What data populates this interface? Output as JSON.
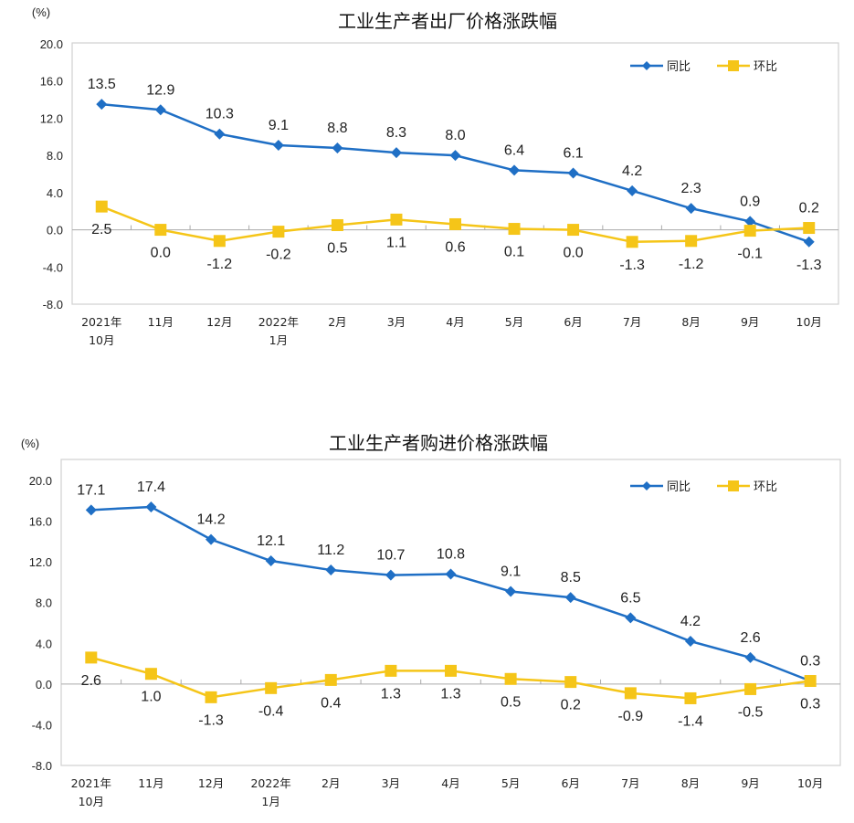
{
  "chart_data": [
    {
      "type": "line",
      "title": "工业生产者出厂价格涨跌幅",
      "ylabel": "(%)",
      "ylim": [
        -8,
        20
      ],
      "yticks": [
        "20.0",
        "16.0",
        "12.0",
        "8.0",
        "4.0",
        "0.0",
        "-4.0",
        "-8.0"
      ],
      "grid": false,
      "legend": "top-right",
      "categories": [
        [
          "2021年",
          "10月"
        ],
        [
          "11月"
        ],
        [
          "12月"
        ],
        [
          "2022年",
          "1月"
        ],
        [
          "2月"
        ],
        [
          "3月"
        ],
        [
          "4月"
        ],
        [
          "5月"
        ],
        [
          "6月"
        ],
        [
          "7月"
        ],
        [
          "8月"
        ],
        [
          "9月"
        ],
        [
          "10月"
        ]
      ],
      "series": [
        {
          "name": "同比",
          "color": "#1f6fc5",
          "marker": "diamond",
          "values": [
            13.5,
            12.9,
            10.3,
            9.1,
            8.8,
            8.3,
            8.0,
            6.4,
            6.1,
            4.2,
            2.3,
            0.9,
            -1.3
          ]
        },
        {
          "name": "环比",
          "color": "#f5c518",
          "marker": "square",
          "values": [
            2.5,
            0.0,
            -1.2,
            -0.2,
            0.5,
            1.1,
            0.6,
            0.1,
            0.0,
            -1.3,
            -1.2,
            -0.1,
            0.2
          ]
        }
      ]
    },
    {
      "type": "line",
      "title": "工业生产者购进价格涨跌幅",
      "ylabel": "(%)",
      "ylim": [
        -8,
        20
      ],
      "yticks": [
        "20.0",
        "16.0",
        "12.0",
        "8.0",
        "4.0",
        "0.0",
        "-4.0",
        "-8.0"
      ],
      "grid": false,
      "legend": "top-right",
      "categories": [
        [
          "2021年",
          "10月"
        ],
        [
          "11月"
        ],
        [
          "12月"
        ],
        [
          "2022年",
          "1月"
        ],
        [
          "2月"
        ],
        [
          "3月"
        ],
        [
          "4月"
        ],
        [
          "5月"
        ],
        [
          "6月"
        ],
        [
          "7月"
        ],
        [
          "8月"
        ],
        [
          "9月"
        ],
        [
          "10月"
        ]
      ],
      "series": [
        {
          "name": "同比",
          "color": "#1f6fc5",
          "marker": "diamond",
          "values": [
            17.1,
            17.4,
            14.2,
            12.1,
            11.2,
            10.7,
            10.8,
            9.1,
            8.5,
            6.5,
            4.2,
            2.6,
            0.3
          ]
        },
        {
          "name": "环比",
          "color": "#f5c518",
          "marker": "square",
          "values": [
            2.6,
            1.0,
            -1.3,
            -0.4,
            0.4,
            1.3,
            1.3,
            0.5,
            0.2,
            -0.9,
            -1.4,
            -0.5,
            0.3
          ]
        }
      ]
    }
  ]
}
